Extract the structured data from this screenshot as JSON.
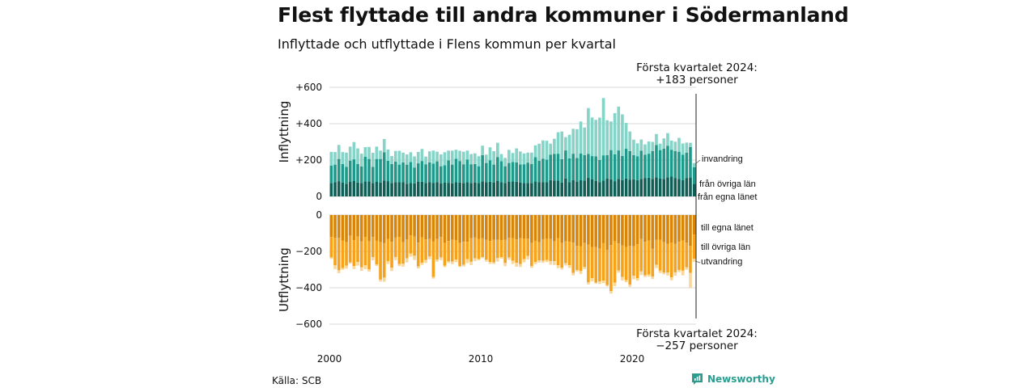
{
  "title": "Flest flyttade till andra kommuner i Södermanland",
  "subtitle": "Inflyttade och utflyttade i Flens kommun per kvartal",
  "annotation_top": {
    "line1": "Första kvartalet 2024:",
    "line2": "+183 personer"
  },
  "annotation_bottom": {
    "line1": "Första kvartalet 2024:",
    "line2": "−257 personer"
  },
  "source": "Källa: SCB",
  "brand": "Newsworthy",
  "colors": {
    "in_local": "#0f5f56",
    "in_other": "#1f9a8a",
    "in_immigration": "#86d3c7",
    "out_local": "#d98508",
    "out_other": "#f7a21b",
    "out_emigration": "#f9d79a",
    "grid": "#d9d9d9",
    "brand": "#2a9d8f"
  },
  "chart_data": {
    "type": "bar",
    "stacked": true,
    "x_unit": "quarter",
    "x_start": "2000 Q1",
    "x_end": "2024 Q1",
    "x_ticks": [
      "2000",
      "2010",
      "2020"
    ],
    "panels": [
      {
        "name": "inflyttning",
        "ylabel": "Inflyttning",
        "yticks": [
          "+600",
          "+400",
          "+200",
          "0"
        ],
        "ylim": [
          0,
          600
        ],
        "series_labels": [
          "från egna länet",
          "från övriga län",
          "invandring"
        ],
        "series": [
          {
            "name": "från egna länet",
            "values": [
              74,
              79,
              84,
              77,
              70,
              80,
              86,
              76,
              73,
              82,
              83,
              73,
              80,
              76,
              88,
              84,
              74,
              79,
              78,
              79,
              70,
              75,
              72,
              80,
              81,
              74,
              78,
              75,
              79,
              71,
              77,
              75,
              72,
              79,
              76,
              73,
              79,
              74,
              77,
              73,
              83,
              79,
              81,
              77,
              86,
              79,
              74,
              80,
              82,
              81,
              77,
              74,
              73,
              73,
              83,
              78,
              78,
              79,
              90,
              87,
              88,
              76,
              98,
              79,
              89,
              80,
              89,
              87,
              102,
              95,
              86,
              79,
              87,
              98,
              94,
              84,
              97,
              90,
              99,
              91,
              94,
              90,
              96,
              100,
              103,
              96,
              105,
              98,
              96,
              105,
              109,
              100,
              97,
              89,
              100,
              104,
              70
            ]
          },
          {
            "name": "från övriga län",
            "values": [
              96,
              96,
              122,
              101,
              93,
              117,
              118,
              103,
              92,
              136,
              123,
              90,
              126,
              130,
              155,
              112,
              104,
              113,
              97,
              108,
              105,
              114,
              87,
              102,
              114,
              103,
              110,
              106,
              114,
              95,
              94,
              123,
              103,
              128,
              119,
              104,
              124,
              103,
              101,
              93,
              144,
              105,
              118,
              98,
              131,
              115,
              92,
              104,
              108,
              107,
              99,
              103,
              113,
              106,
              133,
              118,
              130,
              123,
              140,
              147,
              147,
              129,
              155,
              131,
              146,
              132,
              147,
              140,
              132,
              127,
              135,
              121,
              139,
              129,
              161,
              148,
              156,
              133,
              163,
              158,
              133,
              130,
              156,
              129,
              132,
              153,
              178,
              157,
              167,
              174,
              148,
              149,
              149,
              140,
              140,
              168,
              90
            ]
          },
          {
            "name": "invandring",
            "values": [
              75,
              69,
              77,
              66,
              78,
              77,
              95,
              85,
              70,
              53,
              66,
              77,
              68,
              46,
              73,
              62,
              44,
              58,
              76,
              54,
              56,
              54,
              61,
              63,
              66,
              42,
              60,
              71,
              53,
              65,
              72,
              54,
              77,
              50,
              56,
              69,
              49,
              56,
              59,
              55,
              52,
              46,
              71,
              74,
              78,
              39,
              46,
              72,
              49,
              76,
              71,
              59,
              55,
              62,
              65,
              94,
              100,
              104,
              60,
              83,
              118,
              152,
              73,
              129,
              137,
              158,
              176,
              152,
              252,
              212,
              200,
              233,
              315,
              192,
              157,
              226,
              241,
              228,
              142,
              108,
              85,
              72,
              61,
              57,
              67,
              51,
              60,
              35,
              56,
              69,
              50,
              52,
              76,
              62,
              56,
              23,
              23
            ]
          }
        ]
      },
      {
        "name": "utflyttning",
        "ylabel": "Utflyttning",
        "yticks": [
          "0",
          "−200",
          "−400",
          "−600"
        ],
        "ylim": [
          -600,
          0
        ],
        "series_labels": [
          "till egna länet",
          "till övriga län",
          "utvandring"
        ],
        "series": [
          {
            "name": "till egna länet",
            "values": [
              -121,
              -126,
              -126,
              -140,
              -150,
              -113,
              -139,
              -119,
              -146,
              -120,
              -145,
              -121,
              -140,
              -150,
              -155,
              -131,
              -147,
              -124,
              -120,
              -150,
              -135,
              -112,
              -119,
              -152,
              -123,
              -134,
              -132,
              -146,
              -132,
              -121,
              -154,
              -143,
              -136,
              -139,
              -153,
              -148,
              -148,
              -128,
              -124,
              -131,
              -127,
              -137,
              -143,
              -137,
              -136,
              -139,
              -136,
              -126,
              -127,
              -134,
              -128,
              -129,
              -129,
              -154,
              -142,
              -149,
              -133,
              -132,
              -132,
              -145,
              -127,
              -153,
              -145,
              -147,
              -152,
              -169,
              -171,
              -153,
              -162,
              -176,
              -176,
              -184,
              -155,
              -191,
              -166,
              -145,
              -157,
              -167,
              -176,
              -169,
              -172,
              -161,
              -132,
              -147,
              -141,
              -186,
              -137,
              -137,
              -150,
              -158,
              -151,
              -158,
              -147,
              -141,
              -151,
              -169,
              -107
            ]
          },
          {
            "name": "till övriga län",
            "values": [
              -112,
              -151,
              -178,
              -151,
              -128,
              -147,
              -141,
              -140,
              -141,
              -157,
              -154,
              -111,
              -131,
              -205,
              -189,
              -122,
              -143,
              -107,
              -150,
              -118,
              -103,
              -100,
              -105,
              -130,
              -139,
              -113,
              -96,
              -195,
              -113,
              -112,
              -125,
              -112,
              -120,
              -106,
              -127,
              -125,
              -95,
              -129,
              -114,
              -111,
              -104,
              -109,
              -115,
              -123,
              -101,
              -93,
              -128,
              -108,
              -124,
              -129,
              -142,
              -114,
              -96,
              -126,
              -117,
              -100,
              -119,
              -116,
              -121,
              -109,
              -149,
              -137,
              -120,
              -129,
              -166,
              -134,
              -137,
              -133,
              -208,
              -171,
              -195,
              -181,
              -205,
              -195,
              -252,
              -226,
              -148,
              -174,
              -182,
              -214,
              -162,
              -187,
              -178,
              -185,
              -186,
              -152,
              -137,
              -169,
              -167,
              -158,
              -192,
              -157,
              -155,
              -165,
              -137,
              -149,
              -134
            ]
          },
          {
            "name": "utvandring",
            "values": [
              -9,
              -20,
              -16,
              -10,
              -17,
              -8,
              -17,
              -19,
              -20,
              -20,
              -13,
              -17,
              -9,
              -11,
              -23,
              -16,
              -18,
              -17,
              -11,
              -16,
              -23,
              -17,
              -23,
              -12,
              -12,
              -17,
              -15,
              -9,
              -12,
              -15,
              -8,
              -9,
              -14,
              -15,
              -7,
              -10,
              -21,
              -18,
              -16,
              -7,
              -7,
              -10,
              -11,
              -10,
              -19,
              -8,
              -17,
              -12,
              -18,
              -21,
              -16,
              -17,
              -19,
              -11,
              -11,
              -13,
              -11,
              -11,
              -20,
              -21,
              -16,
              -10,
              -13,
              -15,
              -14,
              -8,
              -16,
              -12,
              -12,
              -17,
              -7,
              -14,
              -15,
              -7,
              -14,
              -20,
              -12,
              -19,
              -12,
              -12,
              -19,
              -13,
              -20,
              -9,
              -12,
              -14,
              -18,
              -13,
              -9,
              -17,
              -16,
              -19,
              -12,
              -26,
              -13,
              -83,
              -16
            ]
          }
        ]
      }
    ],
    "legend": "end-labels-right"
  }
}
